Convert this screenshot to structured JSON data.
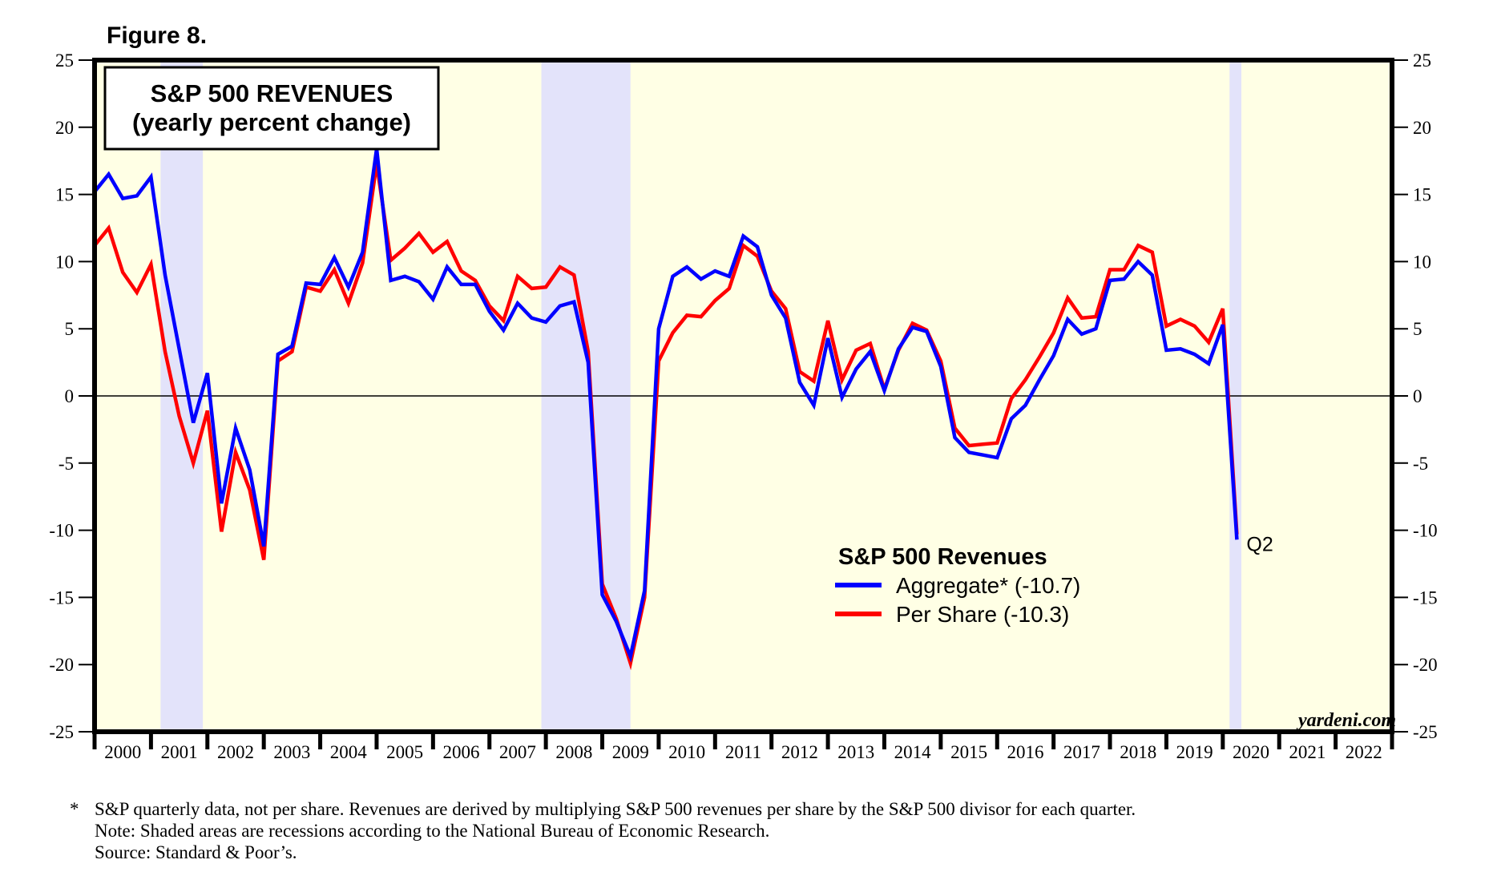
{
  "figure_label": "Figure 8.",
  "footnotes": {
    "marker": "*",
    "line1": "S&P quarterly data, not per share. Revenues are derived by multiplying S&P 500 revenues per share by the S&P 500 divisor for each quarter.",
    "line2": "Note: Shaded areas are recessions according to the National Bureau of Economic Research.",
    "line3": "Source: Standard & Poor’s."
  },
  "colors": {
    "plot_background": "#ffffe5",
    "recession_shade": "#e3e3fa",
    "aggregate": "#0000ff",
    "per_share": "#ff0000"
  },
  "chart_data": {
    "type": "line",
    "title": "S&P 500 REVENUES",
    "subtitle": "(yearly percent change)",
    "xlabel": "",
    "ylabel": "",
    "ylim": [
      -25,
      25
    ],
    "xlim": [
      2000,
      2023
    ],
    "yticks": [
      25,
      20,
      15,
      10,
      5,
      0,
      -5,
      -10,
      -15,
      -20,
      -25
    ],
    "ytick_labels": [
      "25",
      "20",
      "15",
      "10",
      "5",
      "0",
      "-5",
      "-10",
      "-15",
      "-20",
      "-25"
    ],
    "xtick_labels": [
      "2000",
      "2001",
      "2002",
      "2003",
      "2004",
      "2005",
      "2006",
      "2007",
      "2008",
      "2009",
      "2010",
      "2011",
      "2012",
      "2013",
      "2014",
      "2015",
      "2016",
      "2017",
      "2018",
      "2019",
      "2020",
      "2021",
      "2022"
    ],
    "grid": false,
    "zero_line": true,
    "legend_position": "center-right",
    "legend_title": "S&P 500 Revenues",
    "frequency": "quarterly",
    "x_start": 2000.0,
    "x_step": 0.25,
    "series": [
      {
        "name": "Aggregate* (-10.7)",
        "color": "#0000ff",
        "values": [
          15.2,
          16.5,
          14.7,
          14.9,
          16.3,
          9.0,
          3.5,
          -2.0,
          1.7,
          -8.0,
          -2.4,
          -5.5,
          -11.2,
          3.1,
          3.7,
          8.4,
          8.3,
          10.3,
          8.1,
          10.7,
          18.4,
          8.6,
          8.9,
          8.5,
          7.2,
          9.6,
          8.3,
          8.3,
          6.3,
          4.9,
          6.9,
          5.8,
          5.5,
          6.7,
          7.0,
          2.5,
          -14.8,
          -16.8,
          -19.4,
          -14.5,
          5.0,
          8.9,
          9.6,
          8.7,
          9.3,
          8.9,
          11.9,
          11.1,
          7.5,
          5.8,
          1.0,
          -0.7,
          4.3,
          -0.1,
          2.0,
          3.3,
          0.4,
          3.5,
          5.1,
          4.8,
          2.2,
          -3.1,
          -4.2,
          -4.4,
          -4.6,
          -1.7,
          -0.7,
          1.2,
          3.0,
          5.7,
          4.6,
          5.0,
          8.6,
          8.7,
          10.0,
          9.0,
          3.4,
          3.5,
          3.1,
          2.4,
          5.3,
          -10.7
        ]
      },
      {
        "name": "Per Share (-10.3)",
        "color": "#ff0000",
        "values": [
          11.2,
          12.5,
          9.2,
          7.7,
          9.8,
          3.3,
          -1.5,
          -5.0,
          -1.1,
          -10.1,
          -4.2,
          -7.0,
          -12.2,
          2.6,
          3.3,
          8.1,
          7.8,
          9.4,
          6.9,
          9.9,
          17.3,
          10.1,
          11.0,
          12.1,
          10.7,
          11.5,
          9.3,
          8.6,
          6.7,
          5.6,
          8.9,
          8.0,
          8.1,
          9.6,
          9.0,
          3.3,
          -14.0,
          -16.6,
          -19.9,
          -15.0,
          2.6,
          4.7,
          6.0,
          5.9,
          7.1,
          8.0,
          11.2,
          10.4,
          7.8,
          6.5,
          1.8,
          1.1,
          5.6,
          1.2,
          3.4,
          3.9,
          0.5,
          3.4,
          5.4,
          4.9,
          2.6,
          -2.4,
          -3.7,
          -3.6,
          -3.5,
          -0.2,
          1.2,
          2.9,
          4.7,
          7.3,
          5.8,
          5.9,
          9.4,
          9.4,
          11.2,
          10.7,
          5.2,
          5.7,
          5.2,
          4.0,
          6.5,
          -10.3
        ]
      }
    ],
    "recessions": [
      {
        "start": 2001.17,
        "end": 2001.92
      },
      {
        "start": 2007.92,
        "end": 2009.5
      },
      {
        "start": 2020.12,
        "end": 2020.33
      }
    ],
    "annotations": [
      {
        "text": "Q2",
        "x": 2020.25,
        "y": -10.7
      }
    ],
    "source_credit": "yardeni.com"
  }
}
